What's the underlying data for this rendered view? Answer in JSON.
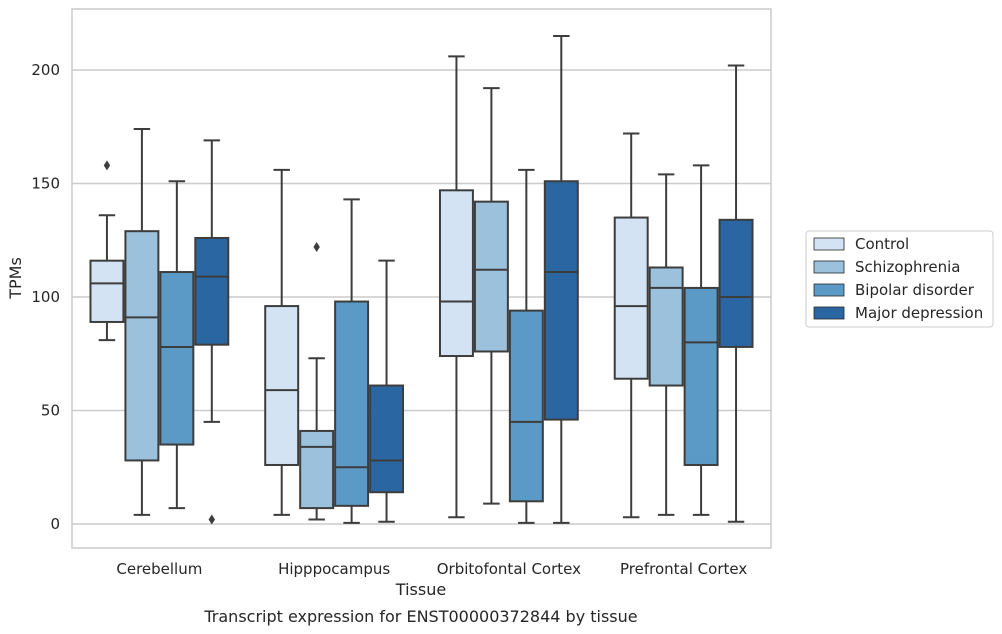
{
  "chart_data": {
    "type": "box",
    "title": "",
    "caption": "Transcript expression for ENST00000372844 by tissue",
    "xlabel": "Tissue",
    "ylabel": "TPMs",
    "ylim": [
      -10,
      227
    ],
    "yticks": [
      0,
      50,
      100,
      150,
      200
    ],
    "grid": "y",
    "legend_position": "right",
    "categories": [
      "Cerebellum",
      "Hipppocampus",
      "Orbitofontal Cortex",
      "Prefrontal Cortex"
    ],
    "series": [
      {
        "name": "Control",
        "color": "#d4e3f3",
        "boxes": [
          {
            "whislo": 81,
            "q1": 89,
            "med": 106,
            "q3": 116,
            "whishi": 136,
            "fliers": [
              158
            ]
          },
          {
            "whislo": 4,
            "q1": 26,
            "med": 59,
            "q3": 96,
            "whishi": 156,
            "fliers": []
          },
          {
            "whislo": 3,
            "q1": 74,
            "med": 98,
            "q3": 147,
            "whishi": 206,
            "fliers": []
          },
          {
            "whislo": 3,
            "q1": 64,
            "med": 96,
            "q3": 135,
            "whishi": 172,
            "fliers": []
          }
        ]
      },
      {
        "name": "Schizophrenia",
        "color": "#9bc1dc",
        "boxes": [
          {
            "whislo": 4,
            "q1": 28,
            "med": 91,
            "q3": 129,
            "whishi": 174,
            "fliers": []
          },
          {
            "whislo": 2,
            "q1": 7,
            "med": 34,
            "q3": 41,
            "whishi": 73,
            "fliers": [
              122
            ]
          },
          {
            "whislo": 9,
            "q1": 76,
            "med": 112,
            "q3": 142,
            "whishi": 192,
            "fliers": []
          },
          {
            "whislo": 4,
            "q1": 61,
            "med": 104,
            "q3": 113,
            "whishi": 154,
            "fliers": []
          }
        ]
      },
      {
        "name": "Bipolar disorder",
        "color": "#5b99c6",
        "boxes": [
          {
            "whislo": 7,
            "q1": 35,
            "med": 78,
            "q3": 111,
            "whishi": 151,
            "fliers": []
          },
          {
            "whislo": 0.5,
            "q1": 8,
            "med": 25,
            "q3": 98,
            "whishi": 143,
            "fliers": []
          },
          {
            "whislo": 0.5,
            "q1": 10,
            "med": 45,
            "q3": 94,
            "whishi": 156,
            "fliers": []
          },
          {
            "whislo": 4,
            "q1": 26,
            "med": 80,
            "q3": 104,
            "whishi": 158,
            "fliers": []
          }
        ]
      },
      {
        "name": "Major depression",
        "color": "#2a67a2",
        "boxes": [
          {
            "whislo": 45,
            "q1": 79,
            "med": 109,
            "q3": 126,
            "whishi": 169,
            "fliers": [
              2
            ]
          },
          {
            "whislo": 1,
            "q1": 14,
            "med": 28,
            "q3": 61,
            "whishi": 116,
            "fliers": []
          },
          {
            "whislo": 0.5,
            "q1": 46,
            "med": 111,
            "q3": 151,
            "whishi": 215,
            "fliers": []
          },
          {
            "whislo": 1,
            "q1": 78,
            "med": 100,
            "q3": 134,
            "whishi": 202,
            "fliers": []
          }
        ]
      }
    ]
  }
}
